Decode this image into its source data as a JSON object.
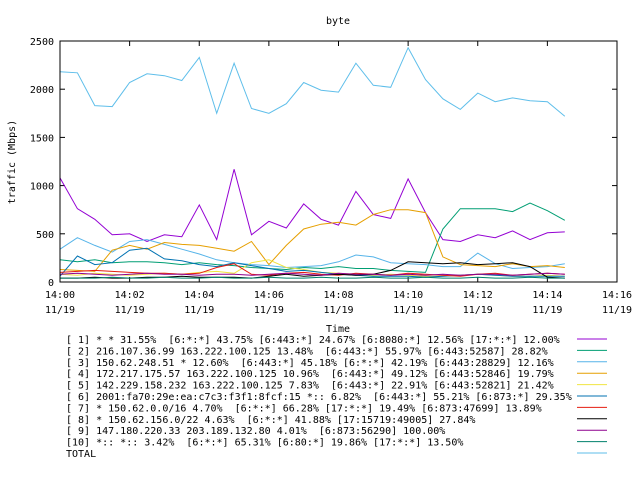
{
  "chart_data": {
    "type": "line",
    "title": "byte",
    "xlabel": "Time",
    "ylabel": "traffic (Mbps)",
    "ylim": [
      0,
      2500
    ],
    "yticks": [
      0,
      500,
      1000,
      1500,
      2000,
      2500
    ],
    "xlim": [
      "14:00",
      "14:16"
    ],
    "xticks": [
      {
        "t": 0,
        "time": "14:00",
        "date": "11/19"
      },
      {
        "t": 2,
        "time": "14:02",
        "date": "11/19"
      },
      {
        "t": 4,
        "time": "14:04",
        "date": "11/19"
      },
      {
        "t": 6,
        "time": "14:06",
        "date": "11/19"
      },
      {
        "t": 8,
        "time": "14:08",
        "date": "11/19"
      },
      {
        "t": 10,
        "time": "14:10",
        "date": "11/19"
      },
      {
        "t": 12,
        "time": "14:12",
        "date": "11/19"
      },
      {
        "t": 14,
        "time": "14:14",
        "date": "11/19"
      },
      {
        "t": 16,
        "time": "14:16",
        "date": "11/19"
      }
    ],
    "x": [
      0,
      0.5,
      1,
      1.5,
      2,
      2.5,
      3,
      3.5,
      4,
      4.5,
      5,
      5.5,
      6,
      6.5,
      7,
      7.5,
      8,
      8.5,
      9,
      9.5,
      10,
      10.5,
      11,
      11.5,
      12,
      12.5,
      13,
      13.5,
      14,
      14.5
    ],
    "grid": false,
    "legend_placement": "below",
    "series": [
      {
        "name": "[ 1] * * 31.55%  [6:*:*] 43.75% [6:443:*] 24.67% [6:8080:*] 12.56% [17:*:*] 12.00%",
        "color": "#9400d3",
        "values": [
          1080,
          760,
          650,
          490,
          500,
          420,
          490,
          470,
          800,
          440,
          1170,
          490,
          630,
          560,
          810,
          650,
          590,
          940,
          700,
          660,
          1070,
          720,
          440,
          420,
          490,
          460,
          530,
          440,
          510,
          520
        ]
      },
      {
        "name": "[ 2] 216.107.36.99 163.222.100.125 13.48%  [6:443:*] 55.97% [6:443:52587] 28.82%",
        "color": "#009e73",
        "values": [
          230,
          210,
          230,
          200,
          210,
          210,
          200,
          180,
          200,
          180,
          170,
          150,
          140,
          130,
          150,
          140,
          160,
          140,
          140,
          120,
          110,
          100,
          550,
          760,
          760,
          760,
          730,
          820,
          740,
          640
        ]
      },
      {
        "name": "[ 3] 150.62.248.51 * 12.60%  [6:443:*] 45.18% [6:*:*] 42.19% [6:443:28829] 12.16%",
        "color": "#56b4e9",
        "values": [
          340,
          460,
          380,
          310,
          420,
          440,
          390,
          340,
          290,
          230,
          200,
          180,
          170,
          150,
          160,
          170,
          210,
          280,
          260,
          200,
          190,
          180,
          160,
          160,
          300,
          190,
          140,
          150,
          160,
          190
        ]
      },
      {
        "name": "[ 4] 172.217.175.57 163.222.100.125 10.96%  [6:443:*] 49.12% [6:443:52846] 19.79%",
        "color": "#e69f00",
        "values": [
          130,
          120,
          110,
          330,
          380,
          340,
          410,
          390,
          380,
          350,
          320,
          420,
          180,
          380,
          550,
          600,
          620,
          590,
          700,
          750,
          750,
          720,
          260,
          180,
          170,
          160,
          190,
          160,
          170,
          150
        ]
      },
      {
        "name": "[ 5] 142.229.158.232 163.222.100.125 7.83%  [6:443:*] 22.91% [6:443:52821] 21.42%",
        "color": "#f0e442",
        "values": [
          80,
          70,
          90,
          80,
          70,
          80,
          90,
          80,
          100,
          110,
          90,
          200,
          230,
          150,
          130,
          100,
          90,
          80,
          70,
          80,
          70,
          60,
          60,
          70,
          80,
          70,
          60,
          60,
          70,
          60
        ]
      },
      {
        "name": "[ 6] 2001:fa70:29e:ea:c7c3:f3f1:8fcf:15 *:: 6.82%  [6:443:*] 55.21% [6:873:*] 29.35%",
        "color": "#0072b2",
        "values": [
          60,
          270,
          180,
          200,
          330,
          350,
          240,
          220,
          180,
          160,
          200,
          170,
          140,
          110,
          120,
          100,
          80,
          70,
          60,
          60,
          60,
          50,
          60,
          70,
          80,
          70,
          60,
          60,
          60,
          60
        ]
      },
      {
        "name": "[ 7] * 150.62.0.0/16 4.70%  [6:*:*] 66.28% [17:*:*] 19.49% [6:873:47699] 13.89%",
        "color": "#e51e10",
        "values": [
          100,
          110,
          120,
          110,
          100,
          90,
          90,
          80,
          90,
          150,
          190,
          80,
          70,
          90,
          100,
          80,
          70,
          90,
          80,
          70,
          90,
          80,
          70,
          60,
          80,
          90,
          70,
          80,
          90,
          80
        ]
      },
      {
        "name": "[ 8] * 150.62.156.0/22 4.63%  [6:*:*] 41.88% [17:15719:49005] 27.84%",
        "color": "#000000",
        "values": [
          40,
          40,
          50,
          40,
          40,
          50,
          50,
          60,
          50,
          50,
          50,
          40,
          60,
          80,
          60,
          70,
          80,
          70,
          80,
          120,
          210,
          200,
          190,
          200,
          180,
          190,
          200,
          160,
          50,
          40
        ]
      },
      {
        "name": "[ 9] 147.180.220.33 203.189.132.80 4.01%  [6:873:56290] 100.00%",
        "color": "#8e008e",
        "values": [
          80,
          90,
          80,
          70,
          80,
          90,
          80,
          80,
          70,
          80,
          80,
          70,
          80,
          90,
          80,
          70,
          90,
          80,
          80,
          70,
          80,
          70,
          80,
          70,
          80,
          80,
          70,
          80,
          90,
          80
        ]
      },
      {
        "name": "[10] *:: *:: 3.42%  [6:*:*] 65.31% [6:80:*] 19.86% [17:*:*] 13.50%",
        "color": "#00806b",
        "values": [
          40,
          40,
          40,
          50,
          40,
          40,
          50,
          40,
          40,
          50,
          40,
          40,
          50,
          40,
          40,
          50,
          40,
          40,
          50,
          40,
          40,
          50,
          40,
          40,
          50,
          40,
          40,
          50,
          40,
          40
        ]
      },
      {
        "name": "TOTAL",
        "color": "#5ebeea",
        "values": [
          2180,
          2170,
          1830,
          1820,
          2070,
          2160,
          2140,
          2090,
          2330,
          1750,
          2270,
          1800,
          1750,
          1850,
          2070,
          1990,
          1970,
          2270,
          2040,
          2020,
          2430,
          2100,
          1900,
          1790,
          1960,
          1870,
          1910,
          1880,
          1870,
          1720
        ]
      }
    ]
  }
}
